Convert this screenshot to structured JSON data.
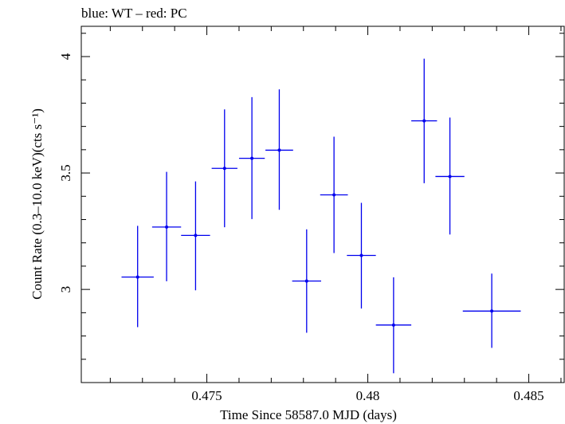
{
  "chart_data": {
    "type": "scatter",
    "title": "blue: WT – red: PC",
    "xlabel": "Time Since 58587.0 MJD (days)",
    "ylabel": "Count Rate (0.3–10.0 keV)(cts s⁻¹)",
    "xlim": [
      0.4711,
      0.4861
    ],
    "ylim": [
      2.6,
      4.13
    ],
    "xticks": [
      0.475,
      0.48,
      0.485
    ],
    "xtick_labels": [
      "0.475",
      "0.48",
      "0.485"
    ],
    "yticks": [
      3,
      3.5,
      4
    ],
    "ytick_labels": [
      "3",
      "3.5",
      "4"
    ],
    "grid": false,
    "series": [
      {
        "name": "WT",
        "color": "#0000ee",
        "points": [
          {
            "x": 0.47285,
            "y": 3.053,
            "xerr": 0.0005,
            "yerr_low": 0.215,
            "yerr_high": 0.22
          },
          {
            "x": 0.47375,
            "y": 3.268,
            "xerr": 0.00045,
            "yerr_low": 0.233,
            "yerr_high": 0.237
          },
          {
            "x": 0.47465,
            "y": 3.232,
            "xerr": 0.00045,
            "yerr_low": 0.236,
            "yerr_high": 0.232
          },
          {
            "x": 0.47555,
            "y": 3.52,
            "xerr": 0.0004,
            "yerr_low": 0.253,
            "yerr_high": 0.253
          },
          {
            "x": 0.4764,
            "y": 3.563,
            "xerr": 0.0004,
            "yerr_low": 0.261,
            "yerr_high": 0.263
          },
          {
            "x": 0.47725,
            "y": 3.598,
            "xerr": 0.00043,
            "yerr_low": 0.256,
            "yerr_high": 0.261
          },
          {
            "x": 0.4781,
            "y": 3.036,
            "xerr": 0.00045,
            "yerr_low": 0.222,
            "yerr_high": 0.222
          },
          {
            "x": 0.47895,
            "y": 3.406,
            "xerr": 0.00043,
            "yerr_low": 0.25,
            "yerr_high": 0.25
          },
          {
            "x": 0.4798,
            "y": 3.146,
            "xerr": 0.00045,
            "yerr_low": 0.228,
            "yerr_high": 0.226
          },
          {
            "x": 0.4808,
            "y": 2.847,
            "xerr": 0.00055,
            "yerr_low": 0.207,
            "yerr_high": 0.205
          },
          {
            "x": 0.48175,
            "y": 3.724,
            "xerr": 0.0004,
            "yerr_low": 0.268,
            "yerr_high": 0.267
          },
          {
            "x": 0.48255,
            "y": 3.485,
            "xerr": 0.00045,
            "yerr_low": 0.249,
            "yerr_high": 0.253
          },
          {
            "x": 0.48385,
            "y": 2.907,
            "xerr": 0.0009,
            "yerr_low": 0.158,
            "yerr_high": 0.161
          }
        ]
      }
    ]
  }
}
